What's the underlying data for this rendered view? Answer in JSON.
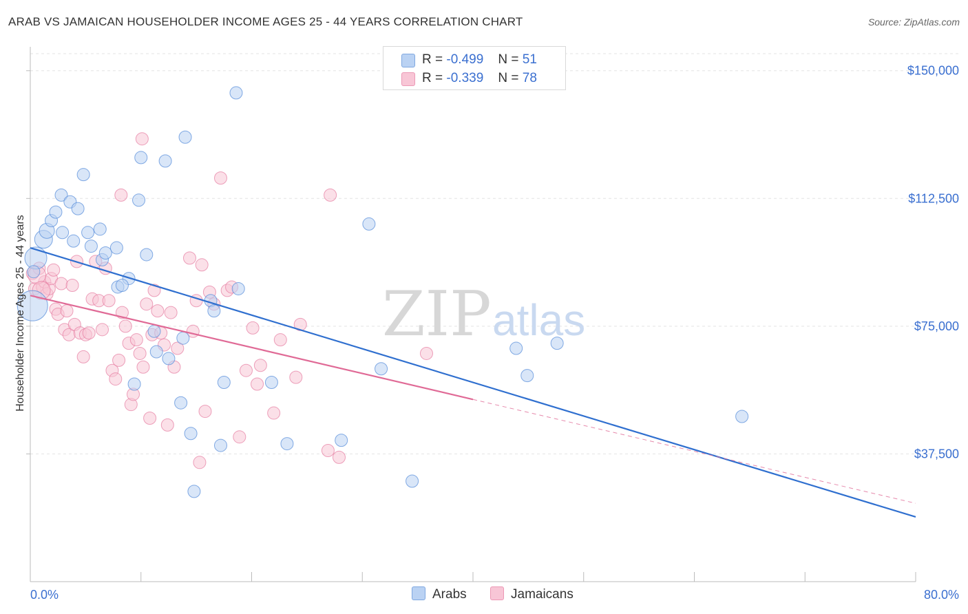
{
  "header": {
    "title": "ARAB VS JAMAICAN HOUSEHOLDER INCOME AGES 25 - 44 YEARS CORRELATION CHART",
    "source": "Source: ZipAtlas.com"
  },
  "watermark": {
    "zip": "ZIP",
    "atlas": "atlas"
  },
  "legend": {
    "rows": [
      {
        "r_label": "R =",
        "r_value": "-0.499",
        "n_label": "N =",
        "n_value": "51",
        "color": "#a9c6ef"
      },
      {
        "r_label": "R =",
        "r_value": "-0.339",
        "n_label": "N =",
        "n_value": "78",
        "color": "#f6b8cb"
      }
    ]
  },
  "bottom_legend": {
    "arabs": "Arabs",
    "jamaicans": "Jamaicans"
  },
  "chart_data": {
    "type": "scatter",
    "xlabel": "",
    "ylabel": "Householder Income Ages 25 - 44 years",
    "xlim": [
      0,
      80
    ],
    "ylim": [
      0,
      155000
    ],
    "x_tick_labels": [
      "0.0%",
      "80.0%"
    ],
    "y_ticks": [
      37500,
      75000,
      112500,
      150000
    ],
    "y_tick_labels": [
      "$37,500",
      "$75,000",
      "$112,500",
      "$150,000"
    ],
    "grid": true,
    "colors": {
      "arabs": "#5a8fdb",
      "arabs_fill": "#bad2f3",
      "jamaicans": "#e67aa0",
      "jamaicans_fill": "#f8c6d6",
      "trend_arabs": "#2f6fcf",
      "trend_jamaicans": "#e06a96",
      "tick_label": "#3a6fd0"
    },
    "series": [
      {
        "name": "Arabs",
        "points": [
          [
            0.2,
            81000
          ],
          [
            0.5,
            95000
          ],
          [
            1.2,
            100500
          ],
          [
            1.5,
            103000
          ],
          [
            1.9,
            106000
          ],
          [
            2.3,
            108500
          ],
          [
            2.8,
            113500
          ],
          [
            2.9,
            102500
          ],
          [
            3.6,
            111500
          ],
          [
            3.9,
            100000
          ],
          [
            4.3,
            109500
          ],
          [
            4.8,
            119500
          ],
          [
            5.2,
            102500
          ],
          [
            5.5,
            98500
          ],
          [
            6.3,
            103500
          ],
          [
            6.5,
            94500
          ],
          [
            6.8,
            96500
          ],
          [
            7.8,
            98000
          ],
          [
            7.9,
            86500
          ],
          [
            8.9,
            89000
          ],
          [
            9.4,
            58000
          ],
          [
            9.8,
            112000
          ],
          [
            10.0,
            124500
          ],
          [
            10.5,
            96000
          ],
          [
            11.2,
            73500
          ],
          [
            11.4,
            67500
          ],
          [
            12.2,
            123500
          ],
          [
            12.5,
            65500
          ],
          [
            13.6,
            52500
          ],
          [
            13.8,
            71500
          ],
          [
            14.0,
            130500
          ],
          [
            14.5,
            43500
          ],
          [
            14.8,
            26500
          ],
          [
            16.3,
            82500
          ],
          [
            16.6,
            79500
          ],
          [
            17.2,
            40000
          ],
          [
            17.5,
            58500
          ],
          [
            18.6,
            143500
          ],
          [
            18.8,
            86000
          ],
          [
            21.8,
            58500
          ],
          [
            23.2,
            40500
          ],
          [
            28.1,
            41500
          ],
          [
            30.6,
            105000
          ],
          [
            31.7,
            62500
          ],
          [
            34.5,
            29500
          ],
          [
            43.9,
            68500
          ],
          [
            44.9,
            60500
          ],
          [
            47.6,
            70000
          ],
          [
            64.3,
            48500
          ],
          [
            0.3,
            91000
          ],
          [
            8.3,
            87000
          ]
        ]
      },
      {
        "name": "Jamaicans",
        "points": [
          [
            0.2,
            90500
          ],
          [
            0.4,
            86000
          ],
          [
            0.8,
            92000
          ],
          [
            1.1,
            86500
          ],
          [
            1.3,
            88000
          ],
          [
            1.5,
            84500
          ],
          [
            1.7,
            86000
          ],
          [
            1.9,
            89000
          ],
          [
            2.1,
            91500
          ],
          [
            2.3,
            80000
          ],
          [
            2.5,
            78500
          ],
          [
            2.8,
            87500
          ],
          [
            3.1,
            74000
          ],
          [
            3.3,
            79500
          ],
          [
            3.5,
            72500
          ],
          [
            3.8,
            87000
          ],
          [
            4.0,
            75500
          ],
          [
            4.2,
            94000
          ],
          [
            4.5,
            73000
          ],
          [
            4.8,
            66000
          ],
          [
            5.0,
            72500
          ],
          [
            5.3,
            73000
          ],
          [
            5.6,
            83000
          ],
          [
            5.9,
            94000
          ],
          [
            6.2,
            82500
          ],
          [
            6.5,
            74000
          ],
          [
            6.8,
            92000
          ],
          [
            7.1,
            82500
          ],
          [
            7.4,
            62000
          ],
          [
            7.7,
            59500
          ],
          [
            8.0,
            65000
          ],
          [
            8.3,
            79000
          ],
          [
            8.6,
            75000
          ],
          [
            8.9,
            70000
          ],
          [
            9.1,
            52000
          ],
          [
            9.3,
            55000
          ],
          [
            9.6,
            71000
          ],
          [
            9.9,
            67000
          ],
          [
            10.2,
            63000
          ],
          [
            10.5,
            81500
          ],
          [
            10.8,
            48000
          ],
          [
            11.0,
            72500
          ],
          [
            11.2,
            85500
          ],
          [
            11.5,
            79500
          ],
          [
            11.8,
            73000
          ],
          [
            12.1,
            69500
          ],
          [
            12.4,
            46000
          ],
          [
            12.7,
            79000
          ],
          [
            13.0,
            63000
          ],
          [
            13.3,
            68500
          ],
          [
            14.4,
            95000
          ],
          [
            14.7,
            73500
          ],
          [
            15.0,
            82500
          ],
          [
            15.3,
            35000
          ],
          [
            15.5,
            93000
          ],
          [
            15.8,
            50000
          ],
          [
            16.2,
            85000
          ],
          [
            16.6,
            81500
          ],
          [
            17.2,
            118500
          ],
          [
            17.8,
            85500
          ],
          [
            18.2,
            86500
          ],
          [
            18.9,
            42500
          ],
          [
            19.5,
            62000
          ],
          [
            20.1,
            74500
          ],
          [
            20.5,
            58000
          ],
          [
            20.8,
            63500
          ],
          [
            22.0,
            49500
          ],
          [
            22.6,
            71000
          ],
          [
            24.0,
            60000
          ],
          [
            24.4,
            75500
          ],
          [
            26.9,
            38500
          ],
          [
            27.1,
            113500
          ],
          [
            27.9,
            36500
          ],
          [
            35.8,
            67000
          ],
          [
            10.1,
            130000
          ],
          [
            8.2,
            113500
          ],
          [
            0.6,
            90000
          ],
          [
            1.0,
            85500
          ]
        ]
      }
    ],
    "trend_lines": [
      {
        "series": "Arabs",
        "from": [
          0,
          98000
        ],
        "to": [
          80,
          19000
        ]
      },
      {
        "series": "Jamaicans",
        "from": [
          0,
          84000
        ],
        "to": [
          40,
          53500
        ],
        "dashed_to": [
          80,
          23000
        ]
      }
    ]
  }
}
